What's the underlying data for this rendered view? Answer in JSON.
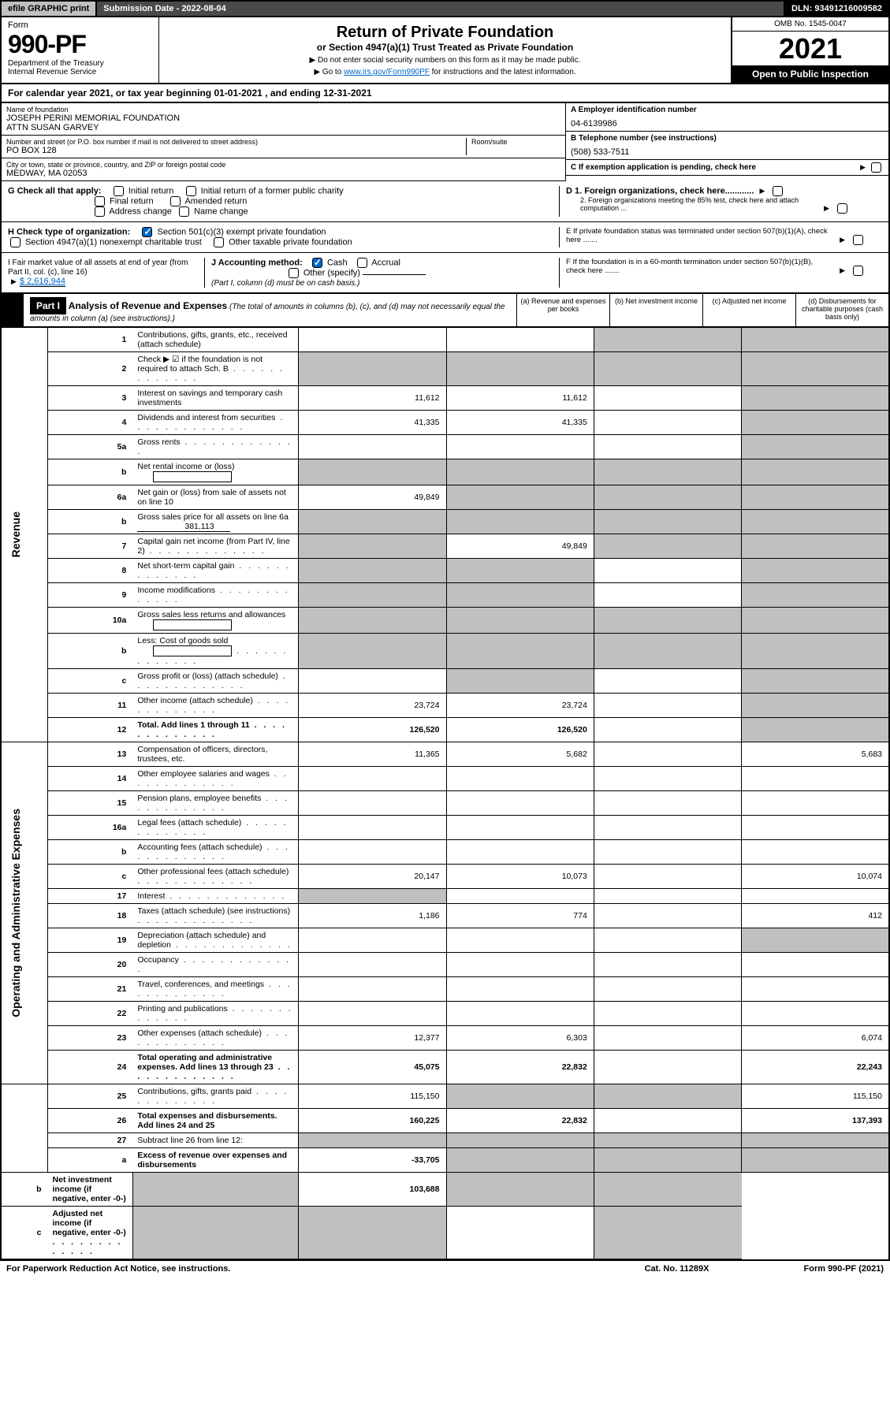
{
  "topbar": {
    "efile": "efile GRAPHIC print",
    "subdate": "Submission Date - 2022-08-04",
    "dln": "DLN: 93491216009582"
  },
  "header": {
    "form_label": "Form",
    "form_no": "990-PF",
    "dept1": "Department of the Treasury",
    "dept2": "Internal Revenue Service",
    "title": "Return of Private Foundation",
    "subtitle": "or Section 4947(a)(1) Trust Treated as Private Foundation",
    "note1": "▶ Do not enter social security numbers on this form as it may be made public.",
    "note2_pre": "▶ Go to ",
    "note2_link": "www.irs.gov/Form990PF",
    "note2_post": " for instructions and the latest information.",
    "omb": "OMB No. 1545-0047",
    "year": "2021",
    "inspection": "Open to Public Inspection"
  },
  "calyear": "For calendar year 2021, or tax year beginning 01-01-2021          , and ending 12-31-2021",
  "info": {
    "name_label": "Name of foundation",
    "name1": "JOSEPH PERINI MEMORIAL FOUNDATION",
    "name2": "ATTN SUSAN GARVEY",
    "addr_label": "Number and street (or P.O. box number if mail is not delivered to street address)",
    "addr": "PO BOX 128",
    "room_label": "Room/suite",
    "city_label": "City or town, state or province, country, and ZIP or foreign postal code",
    "city": "MEDWAY, MA  02053",
    "a_label": "A Employer identification number",
    "a_val": "04-6139986",
    "b_label": "B Telephone number (see instructions)",
    "b_val": "(508) 533-7511",
    "c_label": "C If exemption application is pending, check here"
  },
  "checks": {
    "g_label": "G Check all that apply:",
    "g_opts": [
      "Initial return",
      "Initial return of a former public charity",
      "Final return",
      "Amended return",
      "Address change",
      "Name change"
    ],
    "h_label": "H Check type of organization:",
    "h1": "Section 501(c)(3) exempt private foundation",
    "h2": "Section 4947(a)(1) nonexempt charitable trust",
    "h3": "Other taxable private foundation",
    "i_label": "I Fair market value of all assets at end of year (from Part II, col. (c), line 16)",
    "i_val": "$  2,616,944",
    "j_label": "J Accounting method:",
    "j_cash": "Cash",
    "j_accrual": "Accrual",
    "j_other": "Other (specify)",
    "j_note": "(Part I, column (d) must be on cash basis.)",
    "d1": "D 1. Foreign organizations, check here............",
    "d2": "2. Foreign organizations meeting the 85% test, check here and attach computation ...",
    "e": "E  If private foundation status was terminated under section 507(b)(1)(A), check here .......",
    "f": "F  If the foundation is in a 60-month termination under section 507(b)(1)(B), check here .......",
    "arrow": "▶"
  },
  "part1": {
    "label": "Part I",
    "title": "Analysis of Revenue and Expenses",
    "title_note": " (The total of amounts in columns (b), (c), and (d) may not necessarily equal the amounts in column (a) (see instructions).)",
    "col_a": "(a) Revenue and expenses per books",
    "col_b": "(b) Net investment income",
    "col_c": "(c) Adjusted net income",
    "col_d": "(d) Disbursements for charitable purposes (cash basis only)"
  },
  "sides": {
    "revenue": "Revenue",
    "expenses": "Operating and Administrative Expenses"
  },
  "rows": [
    {
      "n": "1",
      "d": "Contributions, gifts, grants, etc., received (attach schedule)",
      "a": "",
      "b": "",
      "c": "grey",
      "dd": "grey"
    },
    {
      "n": "2",
      "d": "Check ▶ ☑ if the foundation is not required to attach Sch. B",
      "a": "grey",
      "b": "grey",
      "c": "grey",
      "dd": "grey",
      "dots": true
    },
    {
      "n": "3",
      "d": "Interest on savings and temporary cash investments",
      "a": "11,612",
      "b": "11,612",
      "c": "",
      "dd": "grey"
    },
    {
      "n": "4",
      "d": "Dividends and interest from securities",
      "a": "41,335",
      "b": "41,335",
      "c": "",
      "dd": "grey",
      "dots": true
    },
    {
      "n": "5a",
      "d": "Gross rents",
      "a": "",
      "b": "",
      "c": "",
      "dd": "grey",
      "dots": true
    },
    {
      "n": "b",
      "d": "Net rental income or (loss)",
      "a": "grey",
      "b": "grey",
      "c": "grey",
      "dd": "grey",
      "inline": true
    },
    {
      "n": "6a",
      "d": "Net gain or (loss) from sale of assets not on line 10",
      "a": "49,849",
      "b": "grey",
      "c": "grey",
      "dd": "grey"
    },
    {
      "n": "b",
      "d": "Gross sales price for all assets on line 6a",
      "a": "grey",
      "b": "grey",
      "c": "grey",
      "dd": "grey",
      "val_inline": "381,113"
    },
    {
      "n": "7",
      "d": "Capital gain net income (from Part IV, line 2)",
      "a": "grey",
      "b": "49,849",
      "c": "grey",
      "dd": "grey",
      "dots": true
    },
    {
      "n": "8",
      "d": "Net short-term capital gain",
      "a": "grey",
      "b": "grey",
      "c": "",
      "dd": "grey",
      "dots": true
    },
    {
      "n": "9",
      "d": "Income modifications",
      "a": "grey",
      "b": "grey",
      "c": "",
      "dd": "grey",
      "dots": true
    },
    {
      "n": "10a",
      "d": "Gross sales less returns and allowances",
      "a": "grey",
      "b": "grey",
      "c": "grey",
      "dd": "grey",
      "inline": true
    },
    {
      "n": "b",
      "d": "Less: Cost of goods sold",
      "a": "grey",
      "b": "grey",
      "c": "grey",
      "dd": "grey",
      "inline": true,
      "dots": true
    },
    {
      "n": "c",
      "d": "Gross profit or (loss) (attach schedule)",
      "a": "",
      "b": "grey",
      "c": "",
      "dd": "grey",
      "dots": true
    },
    {
      "n": "11",
      "d": "Other income (attach schedule)",
      "a": "23,724",
      "b": "23,724",
      "c": "",
      "dd": "grey",
      "dots": true
    },
    {
      "n": "12",
      "d": "Total. Add lines 1 through 11",
      "a": "126,520",
      "b": "126,520",
      "c": "",
      "dd": "grey",
      "bold": true,
      "dots": true
    },
    {
      "n": "13",
      "d": "Compensation of officers, directors, trustees, etc.",
      "a": "11,365",
      "b": "5,682",
      "c": "",
      "dd": "5,683",
      "sec": "exp"
    },
    {
      "n": "14",
      "d": "Other employee salaries and wages",
      "a": "",
      "b": "",
      "c": "",
      "dd": "",
      "dots": true
    },
    {
      "n": "15",
      "d": "Pension plans, employee benefits",
      "a": "",
      "b": "",
      "c": "",
      "dd": "",
      "dots": true
    },
    {
      "n": "16a",
      "d": "Legal fees (attach schedule)",
      "a": "",
      "b": "",
      "c": "",
      "dd": "",
      "dots": true
    },
    {
      "n": "b",
      "d": "Accounting fees (attach schedule)",
      "a": "",
      "b": "",
      "c": "",
      "dd": "",
      "dots": true
    },
    {
      "n": "c",
      "d": "Other professional fees (attach schedule)",
      "a": "20,147",
      "b": "10,073",
      "c": "",
      "dd": "10,074",
      "dots": true
    },
    {
      "n": "17",
      "d": "Interest",
      "a": "grey",
      "b": "",
      "c": "",
      "dd": "",
      "dots": true
    },
    {
      "n": "18",
      "d": "Taxes (attach schedule) (see instructions)",
      "a": "1,186",
      "b": "774",
      "c": "",
      "dd": "412",
      "dots": true
    },
    {
      "n": "19",
      "d": "Depreciation (attach schedule) and depletion",
      "a": "",
      "b": "",
      "c": "",
      "dd": "grey",
      "dots": true
    },
    {
      "n": "20",
      "d": "Occupancy",
      "a": "",
      "b": "",
      "c": "",
      "dd": "",
      "dots": true
    },
    {
      "n": "21",
      "d": "Travel, conferences, and meetings",
      "a": "",
      "b": "",
      "c": "",
      "dd": "",
      "dots": true
    },
    {
      "n": "22",
      "d": "Printing and publications",
      "a": "",
      "b": "",
      "c": "",
      "dd": "",
      "dots": true
    },
    {
      "n": "23",
      "d": "Other expenses (attach schedule)",
      "a": "12,377",
      "b": "6,303",
      "c": "",
      "dd": "6,074",
      "dots": true
    },
    {
      "n": "24",
      "d": "Total operating and administrative expenses. Add lines 13 through 23",
      "a": "45,075",
      "b": "22,832",
      "c": "",
      "dd": "22,243",
      "bold": true,
      "dots": true
    },
    {
      "n": "25",
      "d": "Contributions, gifts, grants paid",
      "a": "115,150",
      "b": "grey",
      "c": "grey",
      "dd": "115,150",
      "dots": true
    },
    {
      "n": "26",
      "d": "Total expenses and disbursements. Add lines 24 and 25",
      "a": "160,225",
      "b": "22,832",
      "c": "",
      "dd": "137,393",
      "bold": true
    },
    {
      "n": "27",
      "d": "Subtract line 26 from line 12:",
      "a": "grey",
      "b": "grey",
      "c": "grey",
      "dd": "grey",
      "sec": "none"
    },
    {
      "n": "a",
      "d": "Excess of revenue over expenses and disbursements",
      "a": "-33,705",
      "b": "grey",
      "c": "grey",
      "dd": "grey",
      "bold": true
    },
    {
      "n": "b",
      "d": "Net investment income (if negative, enter -0-)",
      "a": "grey",
      "b": "103,688",
      "c": "grey",
      "dd": "grey",
      "bold": true
    },
    {
      "n": "c",
      "d": "Adjusted net income (if negative, enter -0-)",
      "a": "grey",
      "b": "grey",
      "c": "",
      "dd": "grey",
      "bold": true,
      "dots": true
    }
  ],
  "footer": {
    "left": "For Paperwork Reduction Act Notice, see instructions.",
    "mid": "Cat. No. 11289X",
    "right": "Form 990-PF (2021)"
  }
}
